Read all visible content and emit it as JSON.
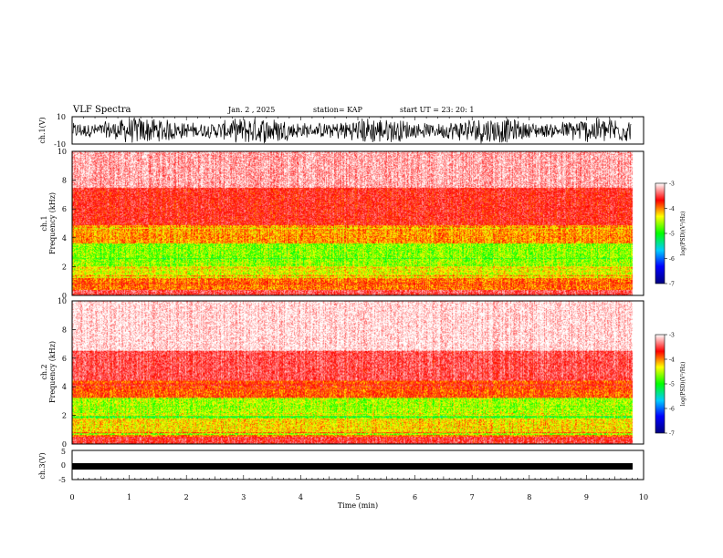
{
  "header": {
    "title": "VLF Spectra",
    "date": "Jan. 2 , 2025",
    "station": "station= KAP",
    "start": "start UT =  23: 20: 1"
  },
  "chart_data": [
    {
      "type": "line",
      "name": "ch1-waveform",
      "ylabel": "ch.1(V)",
      "ylim": [
        -10,
        10
      ],
      "yticks": [
        "10",
        "-10"
      ],
      "xlim": [
        0,
        10
      ],
      "note": "raw waveform envelope, dense noise filling most of +/-10 V"
    },
    {
      "type": "heatmap",
      "name": "ch1-spectrogram",
      "ylabel": "ch.1  Frequency (kHz)",
      "ylim": [
        0,
        10
      ],
      "yticks": [
        "0",
        "2",
        "4",
        "6",
        "8",
        "10"
      ],
      "xlim": [
        0,
        10
      ],
      "bands": [
        {
          "from_khz": 0,
          "to_khz": 0.4,
          "level": -3.6
        },
        {
          "from_khz": 0.4,
          "to_khz": 1.2,
          "level": -4.2
        },
        {
          "from_khz": 1.2,
          "to_khz": 2.0,
          "level": -4.6
        },
        {
          "from_khz": 2.0,
          "to_khz": 3.6,
          "level": -4.9
        },
        {
          "from_khz": 3.6,
          "to_khz": 4.9,
          "level": -4.3
        },
        {
          "from_khz": 4.9,
          "to_khz": 7.5,
          "level": -3.8
        },
        {
          "from_khz": 7.5,
          "to_khz": 10,
          "level": -3.3
        }
      ]
    },
    {
      "type": "heatmap",
      "name": "ch2-spectrogram",
      "ylabel": "ch.2  Frequency (kHz)",
      "ylim": [
        0,
        10
      ],
      "yticks": [
        "0",
        "2",
        "4",
        "6",
        "8",
        "10"
      ],
      "xlim": [
        0,
        10
      ],
      "bands": [
        {
          "from_khz": 0,
          "to_khz": 0.5,
          "level": -3.7
        },
        {
          "from_khz": 0.5,
          "to_khz": 1.8,
          "level": -4.5
        },
        {
          "from_khz": 1.8,
          "to_khz": 3.2,
          "level": -4.8
        },
        {
          "from_khz": 3.2,
          "to_khz": 4.4,
          "level": -4.1
        },
        {
          "from_khz": 4.4,
          "to_khz": 6.5,
          "level": -3.6
        },
        {
          "from_khz": 6.5,
          "to_khz": 10,
          "level": -3.1
        }
      ]
    },
    {
      "type": "line",
      "name": "ch3-waveform",
      "ylabel": "ch.3(V)",
      "ylim": [
        -5,
        5
      ],
      "yticks": [
        "5",
        "0",
        "-5"
      ],
      "xlim": [
        0,
        10
      ],
      "xlabel": "Time (min)",
      "xticks": [
        "0",
        "1",
        "2",
        "3",
        "4",
        "5",
        "6",
        "7",
        "8",
        "9",
        "10"
      ],
      "note": "narrow band around -1 V"
    }
  ],
  "colorbar": {
    "label": "log(PSD)(V²/Hz)",
    "range": [
      -7,
      -3
    ],
    "ticks": [
      "-3",
      "-4",
      "-5",
      "-6",
      "-7"
    ],
    "stops": [
      "#000080",
      "#0000ff",
      "#00ccff",
      "#00ff00",
      "#ffff00",
      "#ff0000",
      "#ffffff"
    ]
  },
  "bg_color": "#ffffff",
  "line_color": "#000000"
}
